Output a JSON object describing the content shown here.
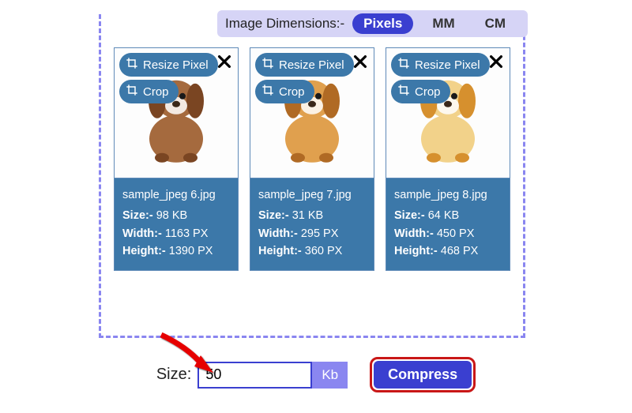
{
  "dimension_bar": {
    "label": "Image Dimensions:-",
    "options": [
      "Pixels",
      "MM",
      "CM"
    ],
    "active_index": 0,
    "bg_color": "#d6d4f6",
    "active_bg": "#3a3fd0"
  },
  "chips": {
    "resize_label": "Resize Pixel",
    "crop_label": "Crop"
  },
  "cards": [
    {
      "filename": "sample_jpeg 6.jpg",
      "size_label": "Size:-",
      "size_value": "98 KB",
      "width_label": "Width:-",
      "width_value": "1163 PX",
      "height_label": "Height:-",
      "height_value": "1390 PX",
      "dog_body": "#a56a3e",
      "dog_ear": "#7a4522",
      "dog_nose": "#3a2718"
    },
    {
      "filename": "sample_jpeg 7.jpg",
      "size_label": "Size:-",
      "size_value": "31 KB",
      "width_label": "Width:-",
      "width_value": "295 PX",
      "height_label": "Height:-",
      "height_value": "360 PX",
      "dog_body": "#e0a04e",
      "dog_ear": "#b06a24",
      "dog_nose": "#3a2718"
    },
    {
      "filename": "sample_jpeg 8.jpg",
      "size_label": "Size:-",
      "size_value": "64 KB",
      "width_label": "Width:-",
      "width_value": "450 PX",
      "height_label": "Height:-",
      "height_value": "468 PX",
      "dog_body": "#f2d28a",
      "dog_ear": "#d6902e",
      "dog_nose": "#3a2718"
    }
  ],
  "controls": {
    "size_label": "Size:",
    "size_value": "50",
    "size_unit": "Kb",
    "compress_label": "Compress"
  },
  "colors": {
    "dashed_border": "#8a86f0",
    "card_border": "#5f8ab8",
    "info_bg": "#3c78a9",
    "primary": "#3a3fd0",
    "highlight_ring": "#c91717"
  }
}
